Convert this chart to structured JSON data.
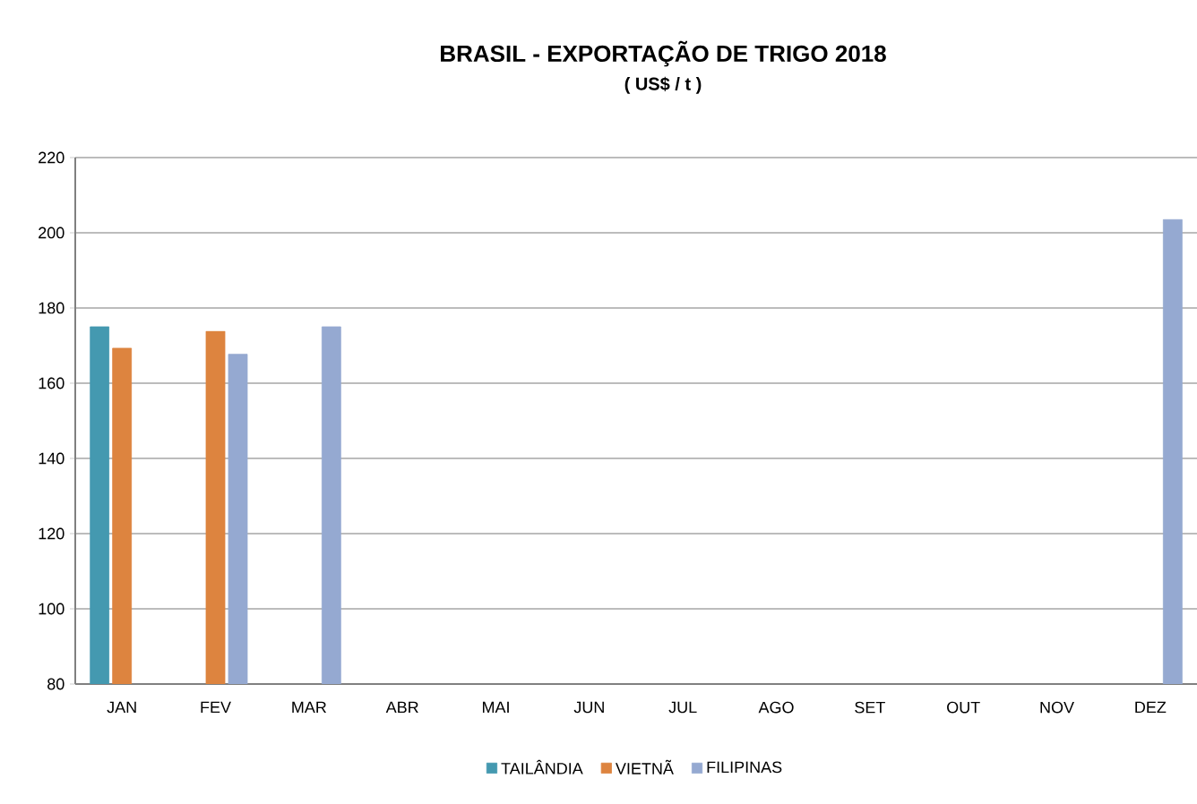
{
  "chart_data": {
    "type": "bar",
    "title": "BRASIL - EXPORTAÇÃO DE TRIGO 2018",
    "subtitle": "( US$ / t )",
    "categories": [
      "JAN",
      "FEV",
      "MAR",
      "ABR",
      "MAI",
      "JUN",
      "JUL",
      "AGO",
      "SET",
      "OUT",
      "NOV",
      "DEZ"
    ],
    "series": [
      {
        "name": "TAILÂNDIA",
        "color": "#4499b0",
        "values": [
          175,
          null,
          null,
          null,
          null,
          null,
          null,
          null,
          null,
          null,
          null,
          null
        ]
      },
      {
        "name": "VIETNÃ",
        "color": "#dd843f",
        "values": [
          169.3,
          173.8,
          null,
          null,
          null,
          null,
          null,
          null,
          null,
          null,
          null,
          null
        ]
      },
      {
        "name": "FILIPINAS",
        "color": "#95a9d1",
        "values": [
          null,
          167.7,
          175,
          null,
          null,
          null,
          null,
          null,
          null,
          null,
          null,
          203.5
        ]
      }
    ],
    "ylim": [
      80,
      220
    ],
    "yticks": [
      80,
      100,
      120,
      140,
      160,
      180,
      200,
      220
    ],
    "grid": "y",
    "legend": "bottom"
  }
}
